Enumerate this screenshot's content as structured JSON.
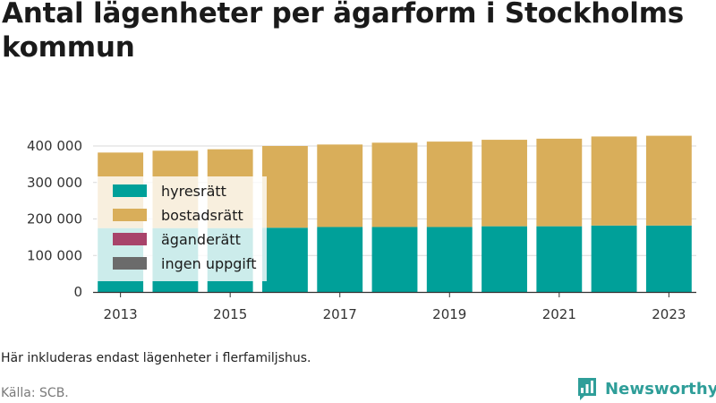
{
  "title": "Antal lägenheter per ägarform i Stockholms kommun",
  "note": "Här inkluderas endast lägenheter i flerfamiljshus.",
  "source": "Källa: SCB.",
  "brand": {
    "name": "Newsworthy",
    "color": "#2f9e99",
    "icon": "newsworthy-logo-icon"
  },
  "chart_data": {
    "type": "bar",
    "stacked": true,
    "categories": [
      "2013",
      "2014",
      "2015",
      "2016",
      "2017",
      "2018",
      "2019",
      "2020",
      "2021",
      "2022",
      "2023"
    ],
    "x_tick_labels": [
      "2013",
      "2015",
      "2017",
      "2019",
      "2021",
      "2023"
    ],
    "series": [
      {
        "name": "hyresrätt",
        "color": "#00a099",
        "values": [
          175000,
          175000,
          175000,
          176000,
          178000,
          178000,
          178000,
          180000,
          180000,
          182000,
          182000
        ]
      },
      {
        "name": "bostadsrätt",
        "color": "#d9ae5a",
        "values": [
          207000,
          212000,
          216000,
          224000,
          226000,
          231000,
          234000,
          237000,
          240000,
          244000,
          246000
        ]
      },
      {
        "name": "äganderätt",
        "color": "#a8436a",
        "values": [
          0,
          0,
          0,
          0,
          0,
          0,
          0,
          0,
          0,
          0,
          0
        ]
      },
      {
        "name": "ingen uppgift",
        "color": "#6b6b6b",
        "values": [
          0,
          0,
          0,
          0,
          0,
          0,
          0,
          0,
          0,
          0,
          0
        ]
      }
    ],
    "ylim": [
      0,
      400000
    ],
    "y_ticks": [
      0,
      100000,
      200000,
      300000,
      400000
    ],
    "y_tick_labels": [
      "0",
      "100 000",
      "200 000",
      "300 000",
      "400 000"
    ],
    "grid": true,
    "legend_placement": "inside-left"
  }
}
